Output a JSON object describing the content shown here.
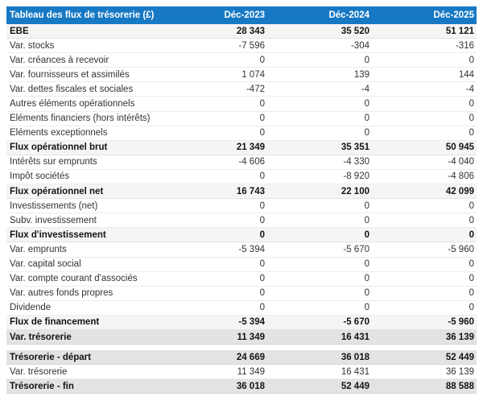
{
  "table": {
    "title": "Tableau des flux de trésorerie (£)",
    "columns": [
      "Déc-2023",
      "Déc-2024",
      "Déc-2025"
    ],
    "colors": {
      "header_bg": "#1779c4",
      "header_text": "#ffffff",
      "subtotal_row_bg": "#f5f5f5",
      "total_row_bg": "#e3e3e3",
      "normal_row_bg": "#ffffff",
      "row_border": "#ececec",
      "text": "#333333"
    },
    "sections": [
      {
        "rows": [
          {
            "label": "EBE",
            "values": [
              "28 343",
              "35 520",
              "51 121"
            ],
            "style": "emphasis"
          },
          {
            "label": "Var. stocks",
            "values": [
              "-7 596",
              "-304",
              "-316"
            ],
            "style": "normal"
          },
          {
            "label": "Var. créances à recevoir",
            "values": [
              "0",
              "0",
              "0"
            ],
            "style": "normal"
          },
          {
            "label": "Var. fournisseurs et assimilés",
            "values": [
              "1 074",
              "139",
              "144"
            ],
            "style": "normal"
          },
          {
            "label": "Var. dettes fiscales et sociales",
            "values": [
              "-472",
              "-4",
              "-4"
            ],
            "style": "normal"
          },
          {
            "label": "Autres éléments opérationnels",
            "values": [
              "0",
              "0",
              "0"
            ],
            "style": "normal"
          },
          {
            "label": "Eléments financiers (hors intérêts)",
            "values": [
              "0",
              "0",
              "0"
            ],
            "style": "normal"
          },
          {
            "label": "Eléments exceptionnels",
            "values": [
              "0",
              "0",
              "0"
            ],
            "style": "normal"
          },
          {
            "label": "Flux opérationnel brut",
            "values": [
              "21 349",
              "35 351",
              "50 945"
            ],
            "style": "emphasis"
          },
          {
            "label": "Intérêts sur emprunts",
            "values": [
              "-4 606",
              "-4 330",
              "-4 040"
            ],
            "style": "normal"
          },
          {
            "label": "Impôt sociétés",
            "values": [
              "0",
              "-8 920",
              "-4 806"
            ],
            "style": "normal"
          },
          {
            "label": "Flux opérationnel net",
            "values": [
              "16 743",
              "22 100",
              "42 099"
            ],
            "style": "emphasis"
          },
          {
            "label": "Investissements (net)",
            "values": [
              "0",
              "0",
              "0"
            ],
            "style": "normal"
          },
          {
            "label": "Subv. investissement",
            "values": [
              "0",
              "0",
              "0"
            ],
            "style": "normal"
          },
          {
            "label": "Flux d'investissement",
            "values": [
              "0",
              "0",
              "0"
            ],
            "style": "emphasis"
          },
          {
            "label": "Var. emprunts",
            "values": [
              "-5 394",
              "-5 670",
              "-5 960"
            ],
            "style": "normal"
          },
          {
            "label": "Var. capital social",
            "values": [
              "0",
              "0",
              "0"
            ],
            "style": "normal"
          },
          {
            "label": "Var. compte courant d'associés",
            "values": [
              "0",
              "0",
              "0"
            ],
            "style": "normal"
          },
          {
            "label": "Var. autres fonds propres",
            "values": [
              "0",
              "0",
              "0"
            ],
            "style": "normal"
          },
          {
            "label": "Dividende",
            "values": [
              "0",
              "0",
              "0"
            ],
            "style": "normal"
          },
          {
            "label": "Flux de financement",
            "values": [
              "-5 394",
              "-5 670",
              "-5 960"
            ],
            "style": "emphasis"
          },
          {
            "label": "Var. trésorerie",
            "values": [
              "11 349",
              "16 431",
              "36 139"
            ],
            "style": "total"
          }
        ]
      },
      {
        "rows": [
          {
            "label": "Trésorerie - départ",
            "values": [
              "24 669",
              "36 018",
              "52 449"
            ],
            "style": "total"
          },
          {
            "label": "Var. trésorerie",
            "values": [
              "11 349",
              "16 431",
              "36 139"
            ],
            "style": "normal"
          },
          {
            "label": "Trésorerie - fin",
            "values": [
              "36 018",
              "52 449",
              "88 588"
            ],
            "style": "total"
          }
        ]
      }
    ]
  }
}
